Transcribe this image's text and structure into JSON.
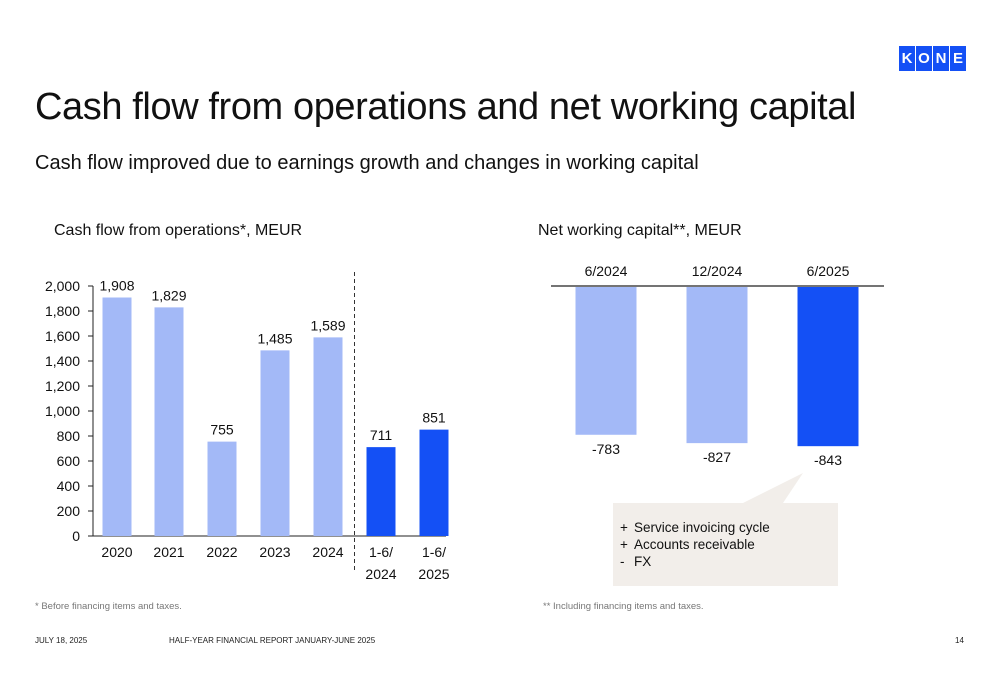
{
  "slide": {
    "title": "Cash flow from operations and net working capital",
    "subtitle": "Cash flow improved due to earnings growth and changes in working capital",
    "page_number": "14"
  },
  "logo": {
    "letters": [
      "K",
      "O",
      "N",
      "E"
    ],
    "color": "#1450f5"
  },
  "footer": {
    "date": "JULY 18, 2025",
    "report": "HALF-YEAR FINANCIAL REPORT JANUARY-JUNE 2025"
  },
  "colors": {
    "light_bar": "#a3b9f7",
    "dark_bar": "#1450f5",
    "callout_bg": "#f2eeea"
  },
  "chart_data": [
    {
      "type": "bar",
      "title": "Cash flow from operations*, MEUR",
      "categories": [
        "2020",
        "2021",
        "2022",
        "2023",
        "2024",
        "1-6/\n2024",
        "1-6/\n2025"
      ],
      "category_lines": [
        [
          "2020"
        ],
        [
          "2021"
        ],
        [
          "2022"
        ],
        [
          "2023"
        ],
        [
          "2024"
        ],
        [
          "1-6/",
          "2024"
        ],
        [
          "1-6/",
          "2025"
        ]
      ],
      "values": [
        1908,
        1829,
        755,
        1485,
        1589,
        711,
        851
      ],
      "data_labels": [
        "1,908",
        "1,829",
        "755",
        "1,485",
        "1,589",
        "711",
        "851"
      ],
      "highlight": [
        false,
        false,
        false,
        false,
        false,
        true,
        true
      ],
      "y_ticks": [
        0,
        200,
        400,
        600,
        800,
        1000,
        1200,
        1400,
        1600,
        1800,
        2000
      ],
      "y_tick_labels": [
        "0",
        "200",
        "400",
        "600",
        "800",
        "1,000",
        "1,200",
        "1,400",
        "1,600",
        "1,800",
        "2,000"
      ],
      "ylim": [
        0,
        2000
      ],
      "separator_after_index": 4,
      "footnote": "* Before financing items and taxes."
    },
    {
      "type": "bar",
      "title": "Net working capital**, MEUR",
      "categories": [
        "6/2024",
        "12/2024",
        "6/2025"
      ],
      "values": [
        -783,
        -827,
        -843
      ],
      "data_labels": [
        "-783",
        "-827",
        "-843"
      ],
      "highlight": [
        false,
        false,
        true
      ],
      "callout": [
        {
          "sign": "+",
          "text": "Service invoicing cycle"
        },
        {
          "sign": "+",
          "text": "Accounts receivable"
        },
        {
          "sign": "-",
          "text": "FX"
        }
      ],
      "footnote": "** Including financing items and taxes."
    }
  ]
}
